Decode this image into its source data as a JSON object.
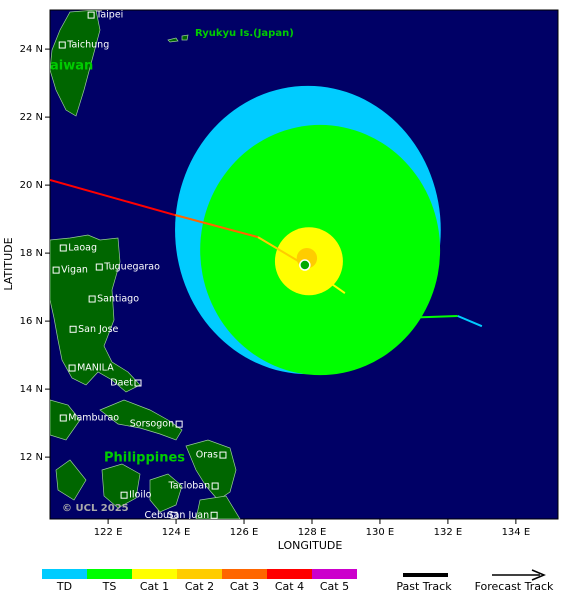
{
  "map": {
    "x_label": "LONGITUDE",
    "y_label": "LATITUDE",
    "xlim": [
      120.29,
      135.24
    ],
    "ylim": [
      10.18,
      25.15
    ],
    "xticks": [
      {
        "value": 122,
        "label": "122 E"
      },
      {
        "value": 124,
        "label": "124 E"
      },
      {
        "value": 126,
        "label": "126 E"
      },
      {
        "value": 128,
        "label": "128 E"
      },
      {
        "value": 130,
        "label": "130 E"
      },
      {
        "value": 132,
        "label": "132 E"
      },
      {
        "value": 134,
        "label": "134 E"
      }
    ],
    "yticks": [
      {
        "value": 12,
        "label": "12 N"
      },
      {
        "value": 14,
        "label": "14 N"
      },
      {
        "value": 16,
        "label": "16 N"
      },
      {
        "value": 18,
        "label": "18 N"
      },
      {
        "value": 20,
        "label": "20 N"
      },
      {
        "value": 22,
        "label": "22 N"
      },
      {
        "value": 24,
        "label": "24 N"
      }
    ],
    "regions": [
      "Ryukyu Is.(Japan)",
      "aiwan",
      "Philippines"
    ],
    "copyright": "© UCL 2025",
    "places": [
      {
        "name": "Taipei",
        "lon": 121.5,
        "lat": 25.0
      },
      {
        "name": "Taichung",
        "lon": 120.65,
        "lat": 24.12
      },
      {
        "name": "Laoag",
        "lon": 120.68,
        "lat": 18.15
      },
      {
        "name": "Vigan",
        "lon": 120.47,
        "lat": 17.5
      },
      {
        "name": "Tuguegarao",
        "lon": 121.74,
        "lat": 17.59
      },
      {
        "name": "Santiago",
        "lon": 121.53,
        "lat": 16.65
      },
      {
        "name": "San Jose",
        "lon": 120.97,
        "lat": 15.76
      },
      {
        "name": "MANILA",
        "lon": 120.94,
        "lat": 14.62
      },
      {
        "name": "Daet",
        "lon": 122.88,
        "lat": 14.18
      },
      {
        "name": "Mamburao",
        "lon": 120.68,
        "lat": 13.15
      },
      {
        "name": "Sorsogon",
        "lon": 124.09,
        "lat": 12.97
      },
      {
        "name": "Oras",
        "lon": 125.38,
        "lat": 12.06
      },
      {
        "name": "Tacloban",
        "lon": 125.15,
        "lat": 11.15
      },
      {
        "name": "Iloilo",
        "lon": 122.47,
        "lat": 10.88
      },
      {
        "name": "Cebu",
        "lon": 123.94,
        "lat": 10.29
      },
      {
        "name": "San Juan",
        "lon": 125.12,
        "lat": 10.29
      }
    ],
    "radii": [
      {
        "color": "#00ccff",
        "lon": 127.88,
        "lat": 18.68,
        "rx": 3.91,
        "ry": 4.24
      },
      {
        "color": "#00ff00",
        "lon": 128.24,
        "lat": 18.09,
        "rx": 3.53,
        "ry": 3.68
      },
      {
        "color": "#ffff00",
        "lon": 127.91,
        "lat": 17.76,
        "rx": 1.0,
        "ry": 1.0
      },
      {
        "color": "#ffcc00",
        "lon": 127.85,
        "lat": 17.85,
        "rx": 0.3,
        "ry": 0.3
      }
    ],
    "track": [
      {
        "lon": 120.29,
        "lat": 20.15,
        "color": "#ff0000"
      },
      {
        "lon": 123.97,
        "lat": 19.12,
        "color": "#ff6600"
      },
      {
        "lon": 126.41,
        "lat": 18.47,
        "color": "#ffcc00"
      },
      {
        "lon": 127.79,
        "lat": 17.65,
        "color": "#ffff00"
      },
      {
        "lon": 128.97,
        "lat": 16.82,
        "color": "#00ff00"
      },
      {
        "lon": 130.59,
        "lat": 16.09,
        "color": "#00ff00"
      },
      {
        "lon": 132.29,
        "lat": 16.15,
        "color": "#00ccff"
      },
      {
        "lon": 133.0,
        "lat": 15.85,
        "color": "#00ccff"
      }
    ],
    "legend": [
      {
        "label": "TD",
        "color": "#00ccff"
      },
      {
        "label": "TS",
        "color": "#00ff00"
      },
      {
        "label": "Cat 1",
        "color": "#ffff00"
      },
      {
        "label": "Cat 2",
        "color": "#ffcc00"
      },
      {
        "label": "Cat 3",
        "color": "#ff6600"
      },
      {
        "label": "Cat 4",
        "color": "#ff0000"
      },
      {
        "label": "Cat 5",
        "color": "#cc00cc"
      }
    ],
    "past_track": "Past Track",
    "forecast_track": "Forecast Track"
  }
}
